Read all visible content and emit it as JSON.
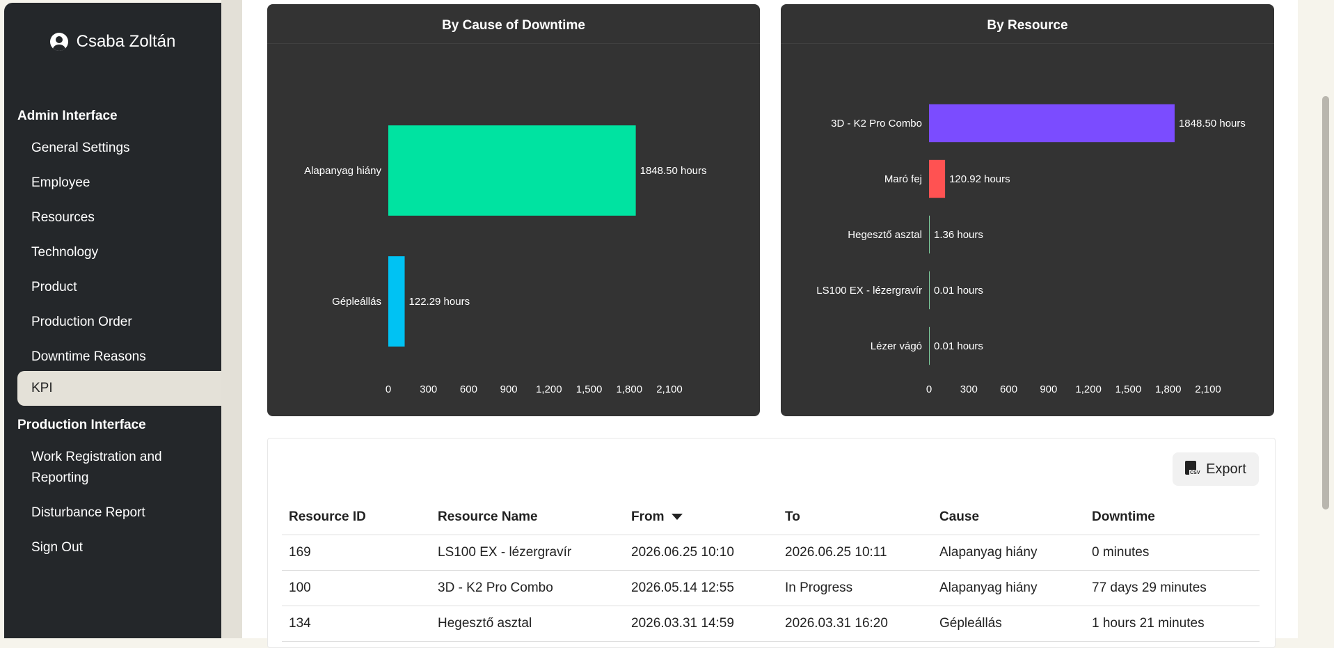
{
  "sidebar": {
    "user_name": "Csaba Zoltán",
    "admin_title": "Admin Interface",
    "admin_items": [
      {
        "label": "General Settings"
      },
      {
        "label": "Employee"
      },
      {
        "label": "Resources"
      },
      {
        "label": "Technology"
      },
      {
        "label": "Product"
      },
      {
        "label": "Production Order"
      },
      {
        "label": "Downtime Reasons"
      },
      {
        "label": "KPI",
        "active": true
      }
    ],
    "production_title": "Production Interface",
    "production_items": [
      {
        "label": "Work Registration and Reporting"
      },
      {
        "label": "Disturbance Report"
      },
      {
        "label": "Sign Out"
      }
    ]
  },
  "chart_data": [
    {
      "type": "bar",
      "orientation": "horizontal",
      "title": "By Cause of Downtime",
      "categories": [
        "Alapanyag hiány",
        "Gépleállás"
      ],
      "values": [
        1848.5,
        122.29
      ],
      "value_labels": [
        "1848.50 hours",
        "122.29 hours"
      ],
      "colors": [
        "#00e3a1",
        "#00c2f3"
      ],
      "xlim": [
        0,
        2100
      ],
      "xticks": [
        "0",
        "300",
        "600",
        "900",
        "1,200",
        "1,500",
        "1,800",
        "2,100"
      ],
      "grid": false
    },
    {
      "type": "bar",
      "orientation": "horizontal",
      "title": "By Resource",
      "categories": [
        "3D - K2 Pro Combo",
        "Maró fej",
        "Hegesztő asztal",
        "LS100 EX - lézergravír",
        "Lézer vágó"
      ],
      "values": [
        1848.5,
        120.92,
        1.36,
        0.01,
        0.01
      ],
      "value_labels": [
        "1848.50 hours",
        "120.92 hours",
        "1.36 hours",
        "0.01 hours",
        "0.01 hours"
      ],
      "colors": [
        "#7b4cff",
        "#ff5252",
        "#7fd0a0",
        "#7fd0a0",
        "#7fd0a0"
      ],
      "xlim": [
        0,
        2100
      ],
      "xticks": [
        "0",
        "300",
        "600",
        "900",
        "1,200",
        "1,500",
        "1,800",
        "2,100"
      ],
      "grid": false
    }
  ],
  "table": {
    "export_label": "Export",
    "export_icon": "csv-file-icon",
    "columns": [
      "Resource ID",
      "Resource Name",
      "From",
      "To",
      "Cause",
      "Downtime"
    ],
    "sorted_column": "From",
    "rows": [
      [
        "169",
        "LS100 EX - lézergravír",
        "2026.06.25 10:10",
        "2026.06.25 10:11",
        "Alapanyag hiány",
        "0 minutes"
      ],
      [
        "100",
        "3D - K2 Pro Combo",
        "2026.05.14 12:55",
        "In Progress",
        "Alapanyag hiány",
        "77 days 29 minutes"
      ],
      [
        "134",
        "Hegesztő asztal",
        "2026.03.31 14:59",
        "2026.03.31 16:20",
        "Gépleállás",
        "1 hours 21 minutes"
      ]
    ]
  }
}
